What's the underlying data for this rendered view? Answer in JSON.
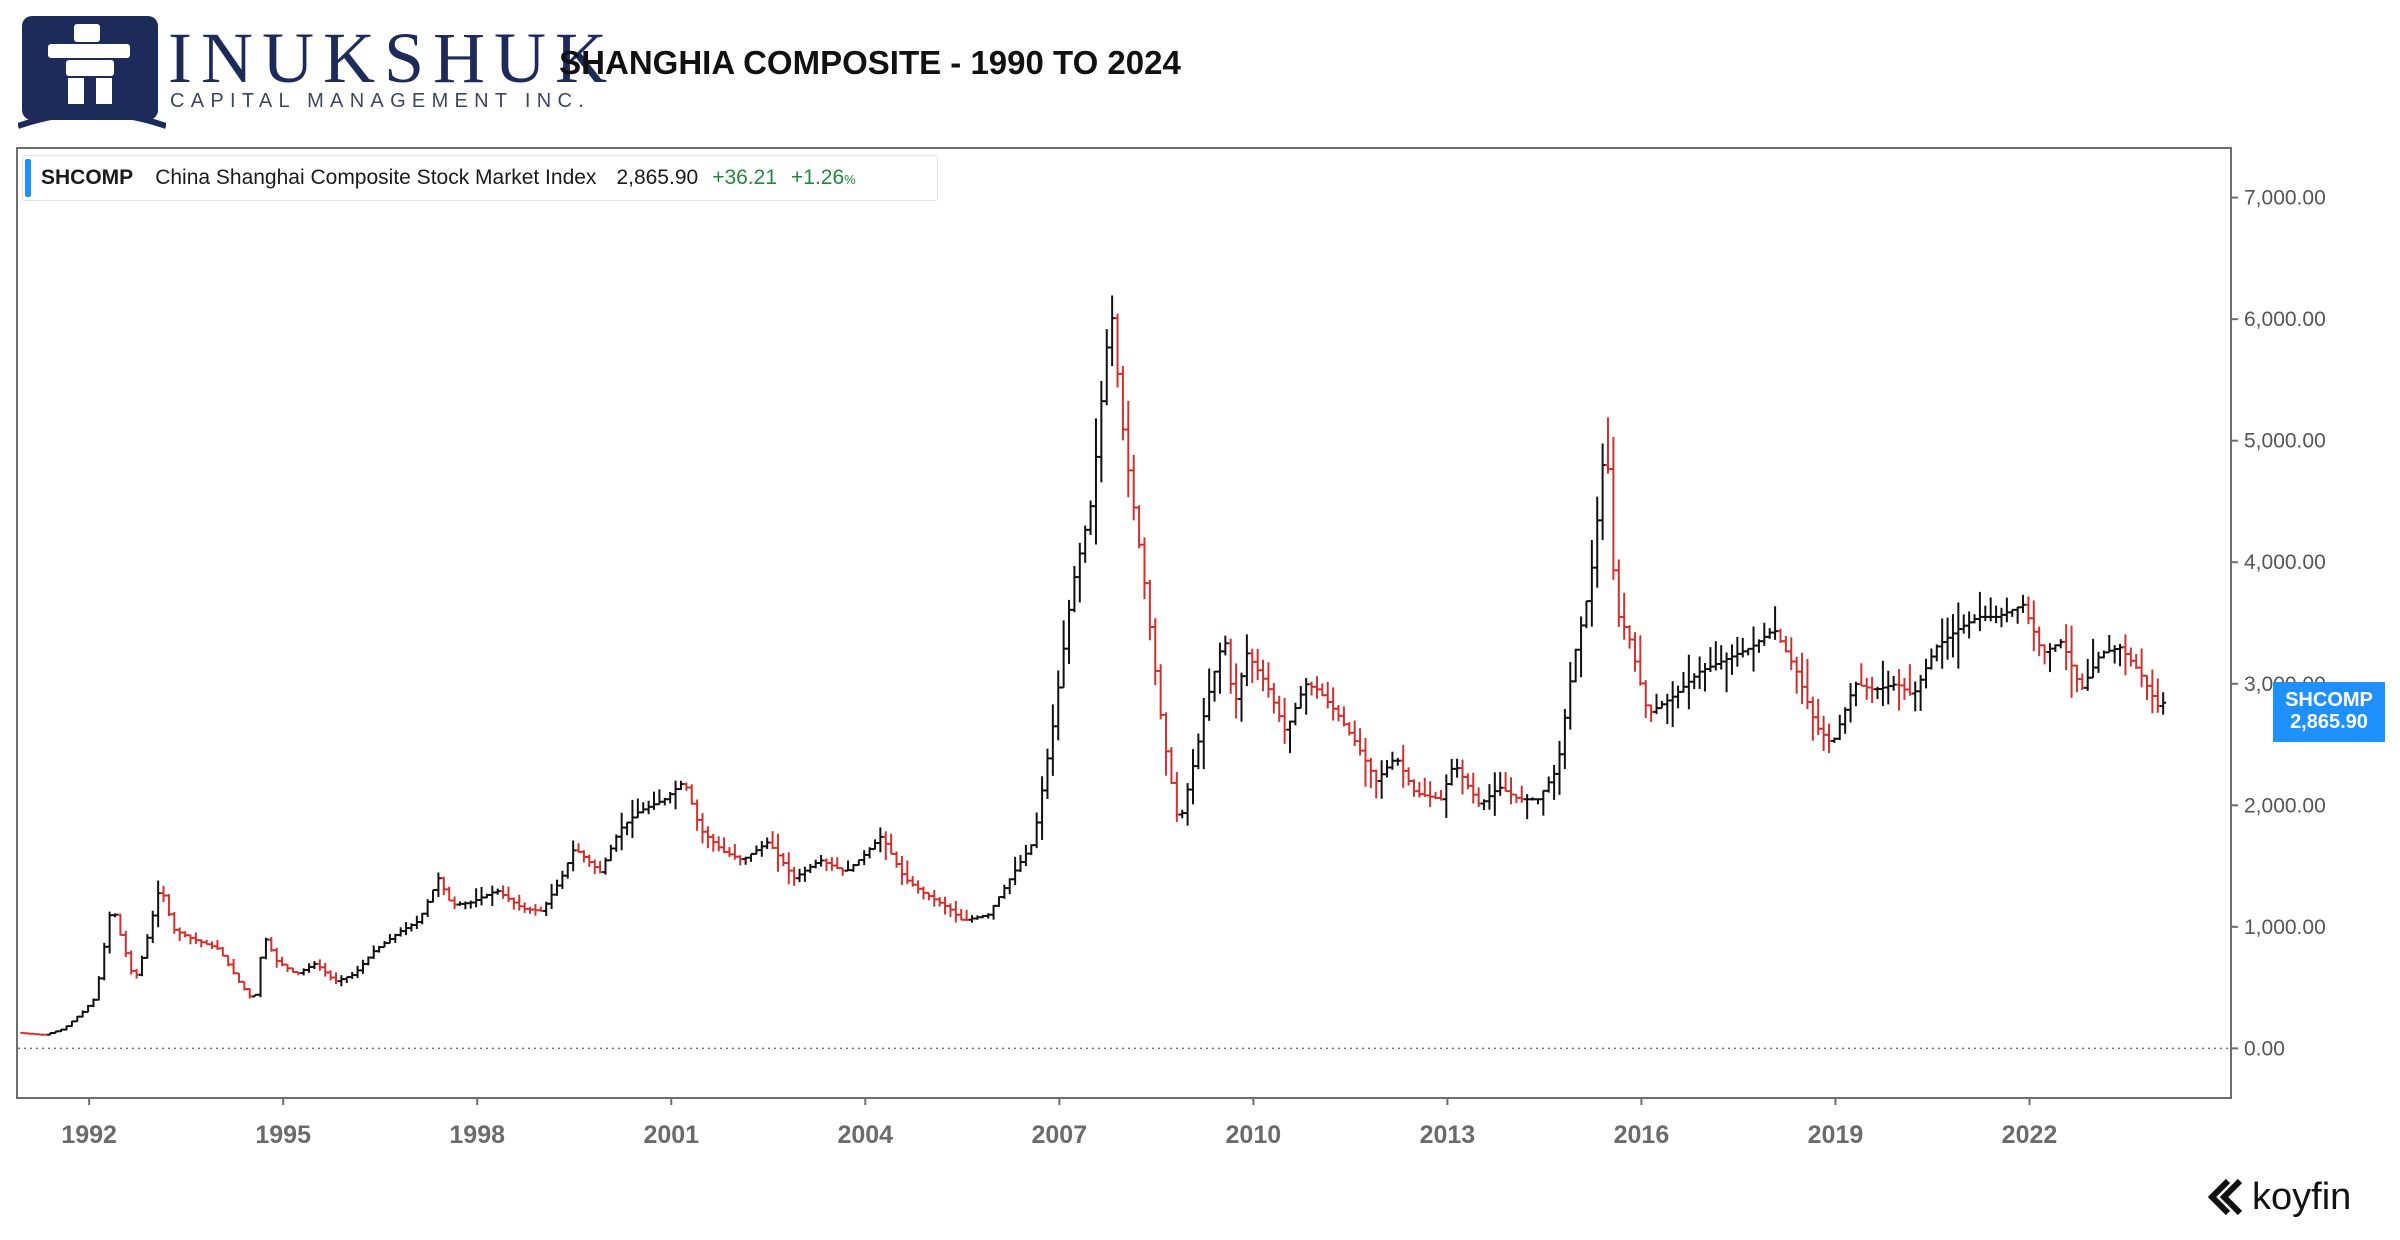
{
  "brand": {
    "name": "INUKSHUK",
    "tagline": "CAPITAL MANAGEMENT INC.",
    "color": "#1d2b5a"
  },
  "title": "SHANGHIA COMPOSITE - 1990 TO 2024",
  "legend": {
    "ticker": "SHCOMP",
    "name": "China Shanghai Composite Stock Market Index",
    "last": "2,865.90",
    "change": "+36.21",
    "change_pct": "+1.26",
    "pct_sign": "%"
  },
  "price_tag": {
    "ticker": "SHCOMP",
    "value": "2,865.90",
    "color": "#1e90ff"
  },
  "watermark": "koyfin",
  "chart_data": {
    "type": "line",
    "style": "monthly OHLC bars (black = up month, red = down month)",
    "x_unit": "year",
    "xlim": [
      1990.9,
      2025.1
    ],
    "ylim": [
      -400,
      7400
    ],
    "x_ticks": [
      "1992",
      "1995",
      "1998",
      "2001",
      "2004",
      "2007",
      "2010",
      "2013",
      "2016",
      "2019",
      "2022"
    ],
    "x_tick_values": [
      1992,
      1995,
      1998,
      2001,
      2004,
      2007,
      2010,
      2013,
      2016,
      2019,
      2022
    ],
    "y_ticks": [
      "7,000.00",
      "6,000.00",
      "5,000.00",
      "4,000.00",
      "3,000.00",
      "2,000.00",
      "1,000.00",
      "0.00"
    ],
    "y_tick_values": [
      7000,
      6000,
      5000,
      4000,
      3000,
      2000,
      1000,
      0
    ],
    "zero_line": "dotted",
    "up_color": "#111111",
    "down_color": "#d0312d",
    "series": [
      {
        "name": "SHCOMP",
        "x": [
          1990.9,
          1991.3,
          1991.6,
          1991.9,
          1992.1,
          1992.35,
          1992.5,
          1992.7,
          1992.85,
          1993.1,
          1993.3,
          1993.6,
          1994.0,
          1994.3,
          1994.55,
          1994.7,
          1994.9,
          1995.2,
          1995.5,
          1995.8,
          1996.1,
          1996.4,
          1996.8,
          1997.1,
          1997.4,
          1997.6,
          1997.9,
          1998.3,
          1998.7,
          1999.0,
          1999.3,
          1999.5,
          1999.9,
          2000.2,
          2000.5,
          2000.9,
          2001.2,
          2001.45,
          2001.8,
          2002.1,
          2002.5,
          2002.9,
          2003.3,
          2003.7,
          2004.0,
          2004.25,
          2004.6,
          2004.9,
          2005.3,
          2005.5,
          2005.9,
          2006.3,
          2006.6,
          2006.9,
          2007.2,
          2007.5,
          2007.7,
          2007.8,
          2008.0,
          2008.3,
          2008.6,
          2008.85,
          2009.1,
          2009.3,
          2009.55,
          2009.7,
          2009.9,
          2010.2,
          2010.5,
          2010.8,
          2011.0,
          2011.3,
          2011.6,
          2011.9,
          2012.2,
          2012.5,
          2012.9,
          2013.1,
          2013.5,
          2013.8,
          2014.1,
          2014.4,
          2014.7,
          2014.95,
          2015.2,
          2015.35,
          2015.45,
          2015.6,
          2015.8,
          2016.1,
          2016.5,
          2016.9,
          2017.3,
          2017.7,
          2018.05,
          2018.4,
          2018.7,
          2018.95,
          2019.3,
          2019.6,
          2019.95,
          2020.2,
          2020.55,
          2020.9,
          2021.2,
          2021.5,
          2021.9,
          2022.2,
          2022.5,
          2022.8,
          2023.1,
          2023.4,
          2023.7,
          2024.0,
          2024.1
        ],
        "values": [
          128,
          110,
          160,
          300,
          420,
          1200,
          900,
          550,
          800,
          1350,
          980,
          900,
          820,
          560,
          380,
          930,
          720,
          610,
          700,
          550,
          610,
          800,
          960,
          1050,
          1400,
          1180,
          1200,
          1300,
          1150,
          1130,
          1400,
          1650,
          1450,
          1800,
          1950,
          2050,
          2200,
          1800,
          1620,
          1550,
          1700,
          1400,
          1550,
          1450,
          1600,
          1750,
          1400,
          1280,
          1150,
          1050,
          1100,
          1450,
          1700,
          2650,
          3800,
          4500,
          5600,
          6100,
          5000,
          3900,
          2600,
          1820,
          2400,
          2900,
          3400,
          2800,
          3250,
          3000,
          2600,
          3000,
          2950,
          2750,
          2500,
          2200,
          2400,
          2100,
          2050,
          2350,
          2000,
          2150,
          2050,
          2050,
          2300,
          3200,
          3800,
          4500,
          5100,
          3600,
          3400,
          2750,
          2900,
          3100,
          3200,
          3300,
          3450,
          3100,
          2650,
          2500,
          3000,
          2950,
          3000,
          2900,
          3300,
          3450,
          3550,
          3550,
          3650,
          3250,
          3350,
          2950,
          3250,
          3300,
          3100,
          2800,
          2866
        ]
      }
    ]
  }
}
